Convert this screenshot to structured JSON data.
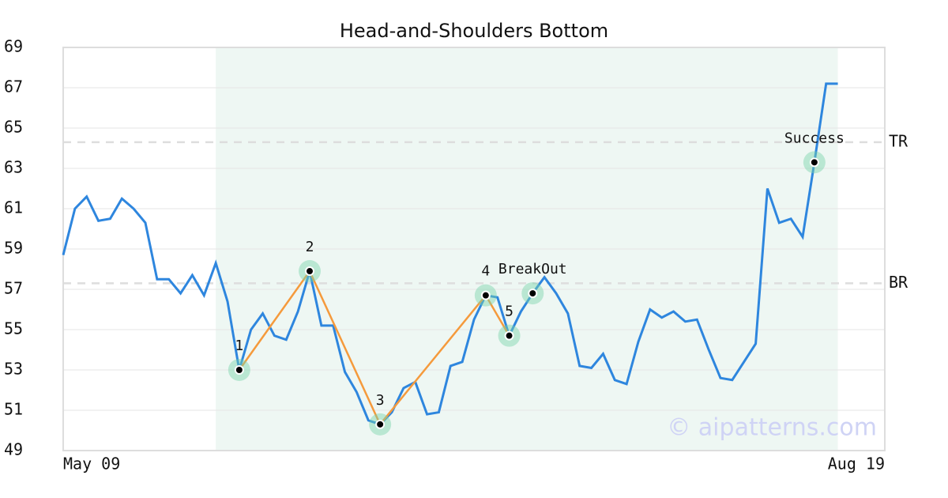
{
  "chart_data": {
    "type": "line",
    "title": "Head-and-Shoulders Bottom",
    "categories": [
      "May 09",
      null,
      null,
      null,
      null,
      null,
      null,
      null,
      null,
      null,
      null,
      null,
      null,
      null,
      null,
      null,
      null,
      null,
      null,
      null,
      null,
      null,
      null,
      null,
      null,
      null,
      null,
      null,
      null,
      null,
      null,
      null,
      null,
      null,
      null,
      null,
      null,
      null,
      null,
      null,
      null,
      null,
      null,
      null,
      null,
      null,
      null,
      null,
      null,
      null,
      null,
      null,
      null,
      null,
      null,
      null,
      null,
      null,
      null,
      null,
      null,
      null,
      null,
      null,
      null,
      null,
      null,
      "Aug 19"
    ],
    "series": [
      {
        "color": "#2e86de",
        "values": [
          58.7,
          61.0,
          61.6,
          60.4,
          60.5,
          61.5,
          61.0,
          60.3,
          57.5,
          57.5,
          56.8,
          57.7,
          56.7,
          58.3,
          56.4,
          53.0,
          55.0,
          55.8,
          54.7,
          54.5,
          55.9,
          57.9,
          55.2,
          55.2,
          52.9,
          51.9,
          50.5,
          50.3,
          50.9,
          52.1,
          52.4,
          50.8,
          50.9,
          53.2,
          53.4,
          55.5,
          56.7,
          56.6,
          54.7,
          55.9,
          56.8,
          57.6,
          56.8,
          55.8,
          53.2,
          53.1,
          53.8,
          52.5,
          52.3,
          54.4,
          56.0,
          55.6,
          55.9,
          55.4,
          55.5,
          54.0,
          52.6,
          52.5,
          53.4,
          54.3,
          62.0,
          60.3,
          60.5,
          59.6,
          63.3,
          67.2,
          67.2,
          null
        ]
      }
    ],
    "ylim": [
      49,
      69
    ],
    "yticks": [
      49,
      51,
      53,
      55,
      57,
      59,
      61,
      63,
      65,
      67,
      69
    ],
    "grid": true,
    "highlight": [
      13,
      66
    ],
    "highlight_color": "#eef7f3",
    "pattern": {
      "color": "#f59a3c",
      "points": [
        {
          "label": "1",
          "at": 15,
          "value": 53.0
        },
        {
          "label": "2",
          "at": 21,
          "value": 57.9
        },
        {
          "label": "3",
          "at": 27,
          "value": 50.3
        },
        {
          "label": "4",
          "at": 36,
          "value": 56.7
        },
        {
          "label": "5",
          "at": 38,
          "value": 54.7
        }
      ]
    },
    "signals": [
      {
        "label": "BreakOut",
        "at": 40,
        "value": 56.8
      },
      {
        "label": "Success",
        "at": 64,
        "value": 63.3
      }
    ],
    "levels": [
      {
        "label": "TR",
        "value": 64.3
      },
      {
        "label": "BR",
        "value": 57.3
      }
    ],
    "watermark": "© aipatterns.com"
  }
}
